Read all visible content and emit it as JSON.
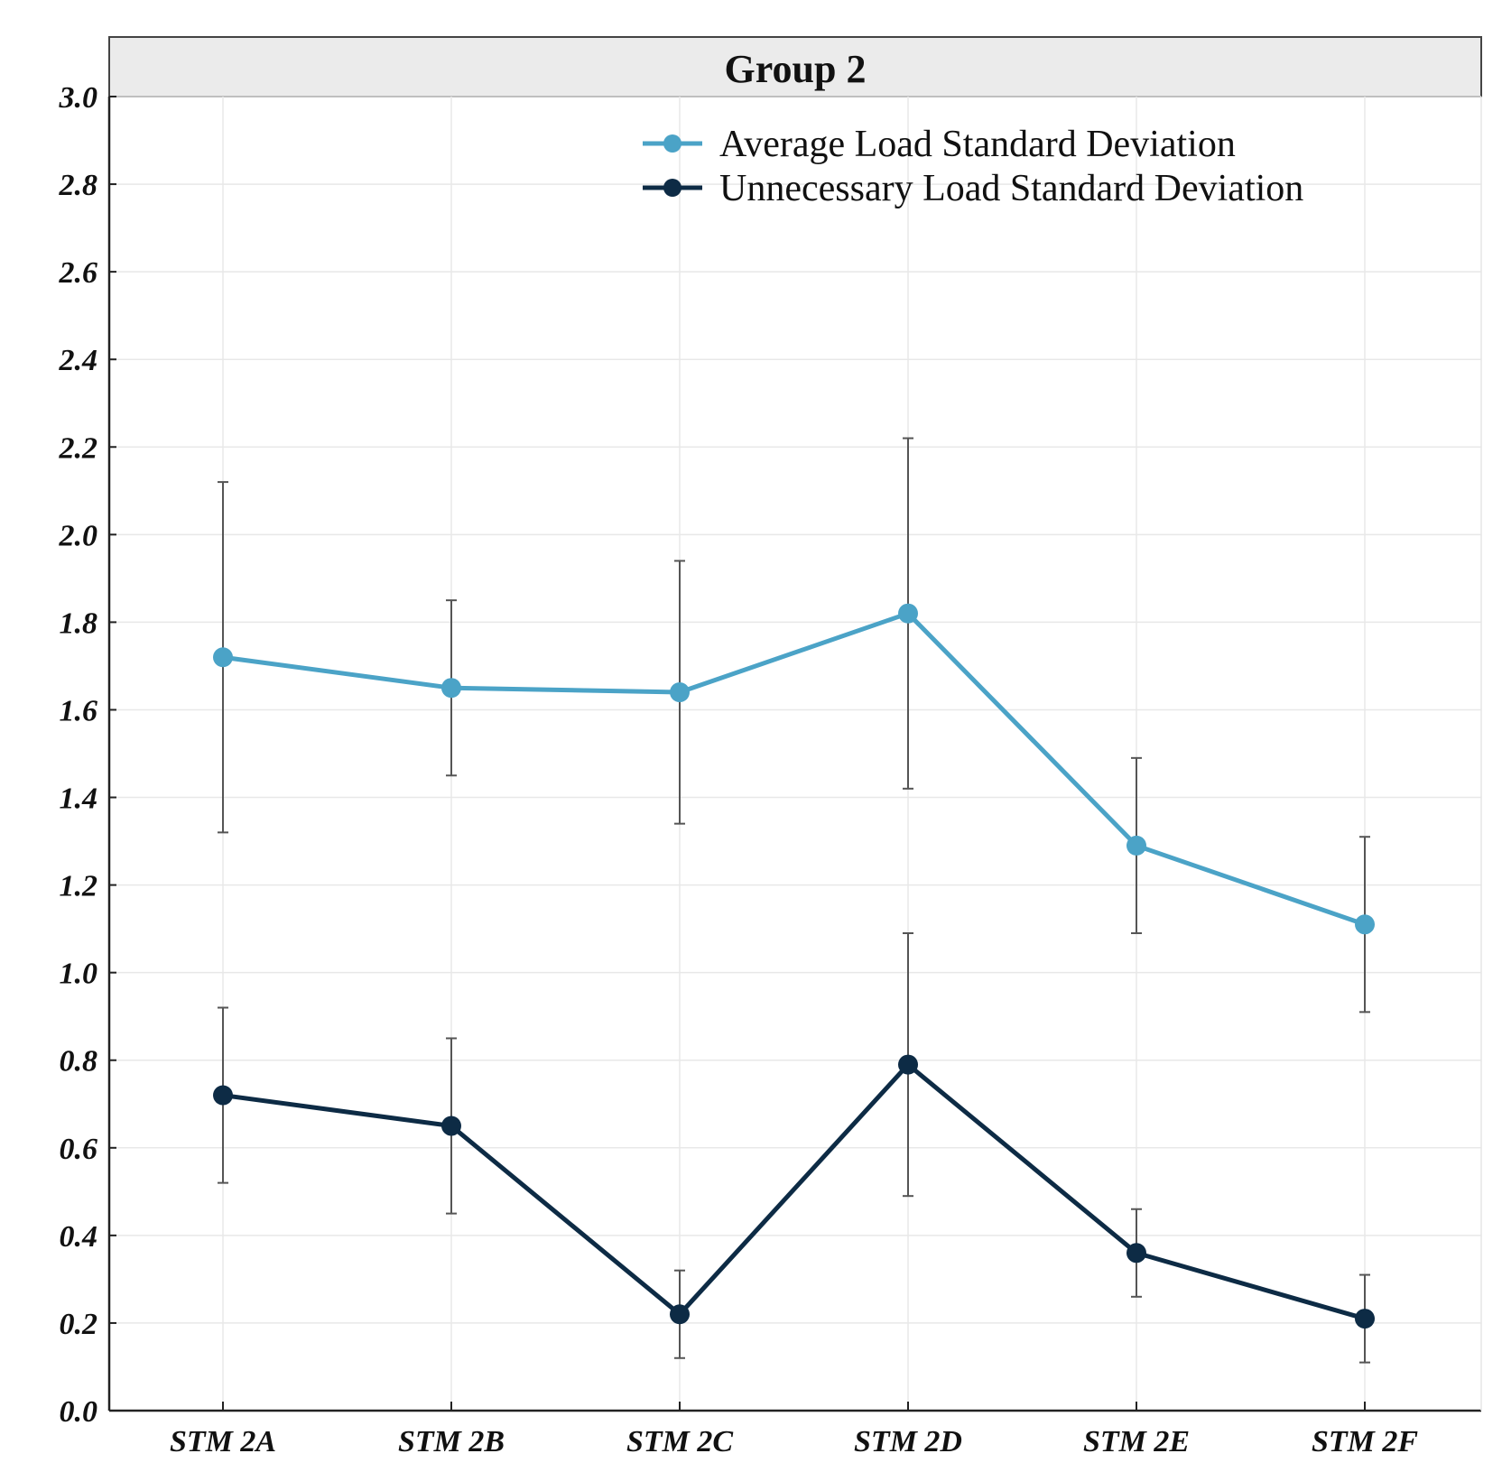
{
  "chart_data": {
    "type": "line",
    "title": "Group 2",
    "xlabel": "",
    "ylabel": "",
    "categories": [
      "STM 2A",
      "STM 2B",
      "STM 2C",
      "STM 2D",
      "STM 2E",
      "STM 2F"
    ],
    "ylim": [
      0.0,
      3.0
    ],
    "yticks": [
      "0.0",
      "0.2",
      "0.4",
      "0.6",
      "0.8",
      "1.0",
      "1.2",
      "1.4",
      "1.6",
      "1.8",
      "2.0",
      "2.2",
      "2.4",
      "2.6",
      "2.8",
      "3.0"
    ],
    "grid": true,
    "legend_position": "top-right",
    "series": [
      {
        "name": "Average Load Standard Deviation",
        "color": "#4ba3c7",
        "values": [
          1.72,
          1.65,
          1.64,
          1.82,
          1.29,
          1.11
        ],
        "error": [
          0.4,
          0.2,
          0.3,
          0.4,
          0.2,
          0.2
        ]
      },
      {
        "name": "Unnecessary Load Standard Deviation",
        "color": "#0d2b45",
        "values": [
          0.72,
          0.65,
          0.22,
          0.79,
          0.36,
          0.21
        ],
        "error": [
          0.2,
          0.2,
          0.1,
          0.3,
          0.1,
          0.1
        ]
      }
    ]
  }
}
